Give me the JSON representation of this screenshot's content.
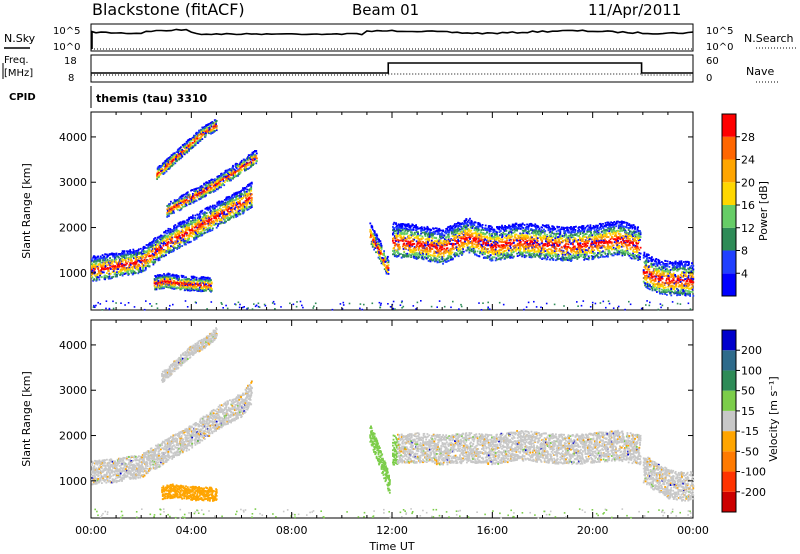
{
  "header": {
    "station": "Blackstone (fitACF)",
    "beam": "Beam 01",
    "date": "11/Apr/2011"
  },
  "colors": {
    "axis": "#000000",
    "power_scale": [
      "#0000ff",
      "#2040ff",
      "#2e8b57",
      "#66cd66",
      "#ffd700",
      "#ffa500",
      "#ff6600",
      "#ff0000"
    ],
    "velocity_scale": [
      "#0000cc",
      "#2e6b8b",
      "#2e8b57",
      "#7ccd4a",
      "#c8c8c8",
      "#ffa500",
      "#ff7a00",
      "#ff3300",
      "#cc0000"
    ]
  },
  "status_panels": {
    "nsky": {
      "label": "N.Sky",
      "left_ticks": [
        "10^5",
        "10^0"
      ],
      "right_ticks": [
        "10^5",
        "10^0"
      ],
      "right_label": "N.Search"
    },
    "freq": {
      "label_line1": "Freq.",
      "label_line2": "[MHz]",
      "left_ticks": [
        "18",
        "8"
      ],
      "right_ticks": [
        "60",
        "0"
      ],
      "right_label": "Nave",
      "freq_step_start_hour": 11.85,
      "freq_step_end_hour": 21.95
    },
    "cpid": {
      "label": "CPID",
      "program": "themis (tau) 3310"
    }
  },
  "chart_data": [
    {
      "type": "heatmap",
      "panel": "power",
      "ylabel": "Slant Range [km]",
      "ylim": [
        180,
        4550
      ],
      "xlim": [
        0,
        24
      ],
      "yticks": [
        1000,
        2000,
        3000,
        4000
      ],
      "colorbar": {
        "label": "Power [dB]",
        "ticks": [
          "4",
          "8",
          "12",
          "16",
          "20",
          "24",
          "28"
        ]
      },
      "scatter_bands": [
        {
          "x": [
            0.0,
            1.0,
            2.0,
            3.0,
            4.0,
            5.0,
            6.0,
            6.4
          ],
          "y": [
            1100,
            1200,
            1300,
            1700,
            2000,
            2300,
            2600,
            2750
          ],
          "width": 280
        },
        {
          "x": [
            3.0,
            4.0,
            5.0,
            5.8,
            6.6
          ],
          "y": [
            2400,
            2700,
            3000,
            3300,
            3600
          ],
          "width": 150
        },
        {
          "x": [
            2.6,
            3.2,
            3.8,
            4.4,
            5.0
          ],
          "y": [
            3200,
            3500,
            3800,
            4100,
            4300
          ],
          "width": 130
        },
        {
          "x": [
            2.5,
            3.0,
            3.5,
            4.0,
            4.8
          ],
          "y": [
            800,
            850,
            800,
            780,
            760
          ],
          "width": 160
        },
        {
          "x": [
            11.1,
            11.5,
            11.85
          ],
          "y": [
            1900,
            1500,
            1100
          ],
          "width": 220
        },
        {
          "x": [
            12.0,
            13.0,
            14.0,
            15.0,
            16.0,
            17.0,
            18.0,
            19.0,
            20.0,
            21.0,
            21.9
          ],
          "y": [
            1750,
            1700,
            1600,
            1850,
            1650,
            1750,
            1700,
            1650,
            1700,
            1800,
            1650
          ],
          "width": 380
        },
        {
          "x": [
            22.0,
            22.5,
            23.0,
            23.5,
            24.0
          ],
          "y": [
            1100,
            950,
            900,
            900,
            880
          ],
          "width": 380
        }
      ]
    },
    {
      "type": "heatmap",
      "panel": "velocity",
      "xlabel": "Time UT",
      "ylabel": "Slant Range [km]",
      "ylim": [
        180,
        4550
      ],
      "xlim": [
        0,
        24
      ],
      "yticks": [
        1000,
        2000,
        3000,
        4000
      ],
      "xticks": [
        "00:00",
        "04:00",
        "08:00",
        "12:00",
        "16:00",
        "20:00",
        "00:00"
      ],
      "colorbar": {
        "label": "Velocity [m s⁻¹]",
        "ticks": [
          "200",
          "100",
          "50",
          "15",
          "-15",
          "-50",
          "-100",
          "-200"
        ]
      },
      "scatter_bands": [
        {
          "x": [
            0.0,
            1.0,
            2.0,
            3.0,
            4.0,
            5.0,
            6.0,
            6.4
          ],
          "y": [
            1200,
            1250,
            1350,
            1700,
            2000,
            2400,
            2700,
            3000
          ],
          "width": 260
        },
        {
          "x": [
            2.8,
            3.4,
            4.0,
            4.6,
            5.0
          ],
          "y": [
            3300,
            3600,
            3900,
            4100,
            4300
          ],
          "width": 120
        },
        {
          "x": [
            2.8,
            3.3,
            3.8,
            4.4,
            5.0
          ],
          "y": [
            750,
            800,
            750,
            730,
            720
          ],
          "width": 150
        },
        {
          "x": [
            11.1,
            11.5,
            11.9
          ],
          "y": [
            2100,
            1500,
            900
          ],
          "width": 220
        },
        {
          "x": [
            12.0,
            13.0,
            14.0,
            15.0,
            16.0,
            17.0,
            18.0,
            19.0,
            20.0,
            21.0,
            21.9
          ],
          "y": [
            1700,
            1750,
            1700,
            1750,
            1700,
            1800,
            1750,
            1700,
            1750,
            1800,
            1700
          ],
          "width": 330
        },
        {
          "x": [
            22.0,
            22.5,
            23.0,
            23.5,
            24.0
          ],
          "y": [
            1300,
            1100,
            950,
            900,
            900
          ],
          "width": 320
        }
      ]
    }
  ]
}
